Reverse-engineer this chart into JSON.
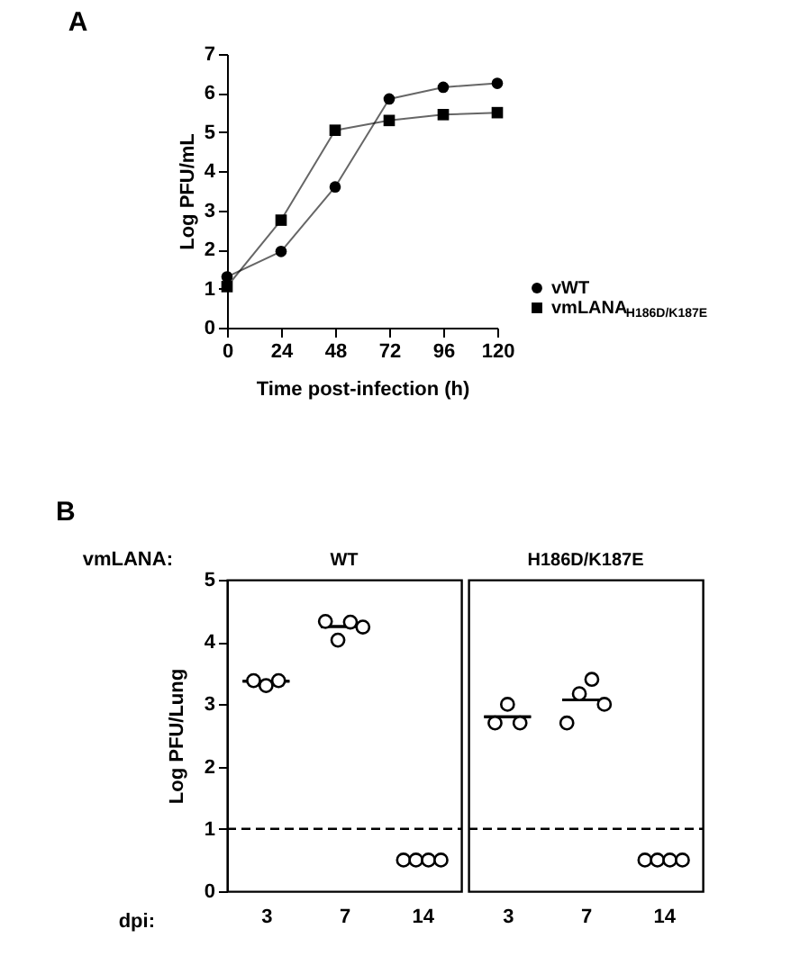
{
  "chart_data": [
    {
      "type": "line",
      "title": "A",
      "xlabel": "Time post-infection (h)",
      "ylabel": "Log PFU/mL",
      "x": [
        0,
        24,
        48,
        72,
        96,
        120
      ],
      "xlim": [
        0,
        120
      ],
      "xticks": [
        0,
        24,
        48,
        72,
        96,
        120
      ],
      "ylim": [
        0,
        7
      ],
      "yticks": [
        0,
        1,
        2,
        3,
        4,
        5,
        6,
        7
      ],
      "legend": "right",
      "grid": false,
      "line_style": "solid",
      "series": [
        {
          "name": "vWT",
          "color": "#000000",
          "marker": "circle",
          "values": [
            1.3,
            1.95,
            3.6,
            5.85,
            6.15,
            6.25
          ]
        },
        {
          "name": "vmLANA$_{H186D/K187E}$",
          "color": "#000000",
          "marker": "square",
          "values": [
            1.05,
            2.75,
            5.05,
            5.3,
            5.45,
            5.5
          ]
        }
      ]
    },
    {
      "type": "scatter",
      "title": "WT",
      "annotations": [
        "B",
        "vmLANA:",
        "dpi:"
      ],
      "ylabel": "Log PFU/Lung",
      "categories": [
        "3",
        "7",
        "14"
      ],
      "ylim": [
        0,
        5
      ],
      "yticks": [
        0,
        1,
        2,
        3,
        4,
        5
      ],
      "grid": false,
      "ref_lines": [
        {
          "axis": "y",
          "value": 1,
          "line_style": "dashed",
          "color": "#000000"
        }
      ],
      "series": [
        {
          "type": "scatter",
          "marker": "circle",
          "color": "#000000",
          "x": [
            "3",
            "3",
            "3",
            "7",
            "7",
            "7",
            "7",
            "14",
            "14",
            "14",
            "14"
          ],
          "values": [
            3.38,
            3.3,
            3.38,
            4.33,
            4.03,
            4.32,
            4.24,
            0.5,
            0.5,
            0.5,
            0.5
          ]
        },
        {
          "type": "box",
          "color": "#000000",
          "boxes": [
            {
              "low": 3.37,
              "q1": 3.37,
              "median": 3.37,
              "q3": 3.37,
              "high": 3.37
            },
            {
              "low": 4.25,
              "q1": 4.25,
              "median": 4.25,
              "q3": 4.25,
              "high": 4.25
            },
            null
          ]
        }
      ]
    },
    {
      "type": "scatter",
      "title": "H186D/K187E",
      "categories": [
        "3",
        "7",
        "14"
      ],
      "ylim": [
        0,
        5
      ],
      "grid": false,
      "tick_labels": "x",
      "ref_lines": [
        {
          "axis": "y",
          "value": 1,
          "line_style": "dashed",
          "color": "#000000"
        }
      ],
      "series": [
        {
          "type": "scatter",
          "marker": "circle",
          "color": "#000000",
          "x": [
            "3",
            "3",
            "3",
            "7",
            "7",
            "7",
            "7",
            "14",
            "14",
            "14",
            "14"
          ],
          "values": [
            2.7,
            3.0,
            2.7,
            2.7,
            3.17,
            3.4,
            3.0,
            0.5,
            0.5,
            0.5,
            0.5
          ]
        },
        {
          "type": "box",
          "color": "#000000",
          "boxes": [
            {
              "low": 2.8,
              "q1": 2.8,
              "median": 2.8,
              "q3": 2.8,
              "high": 2.8
            },
            {
              "low": 3.07,
              "q1": 3.07,
              "median": 3.07,
              "q3": 3.07,
              "high": 3.07
            },
            null
          ]
        }
      ]
    }
  ]
}
